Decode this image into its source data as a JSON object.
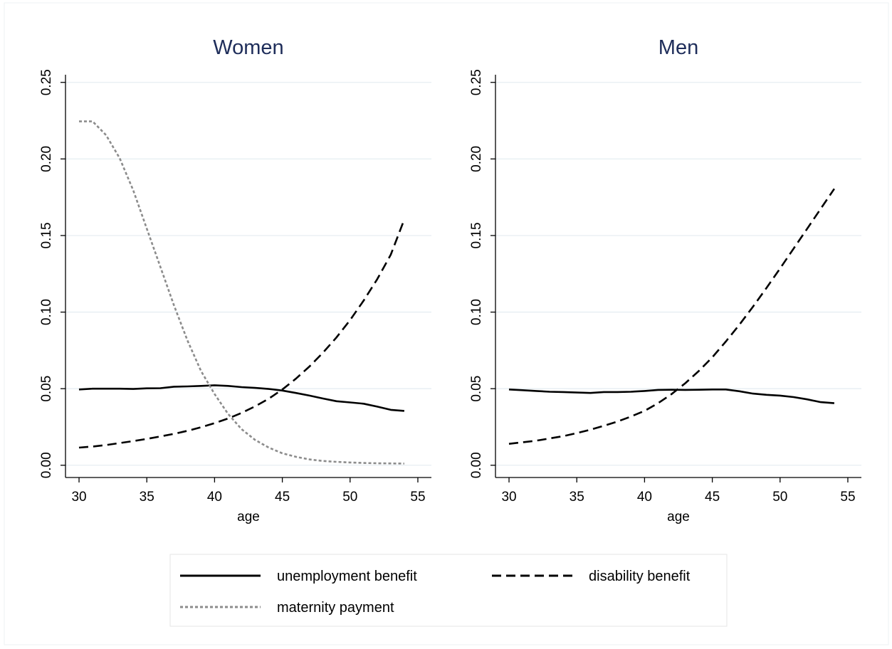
{
  "colors": {
    "background": "#ffffff",
    "grid": "#e6eef2",
    "axis": "#000000",
    "title": "#1e2d5a",
    "unemployment": "#000000",
    "disability": "#000000",
    "maternity": "#8c8c8c"
  },
  "legend": {
    "items": [
      {
        "key": "unemployment",
        "label": "unemployment benefit"
      },
      {
        "key": "disability",
        "label": "disability benefit"
      },
      {
        "key": "maternity",
        "label": "maternity payment"
      }
    ]
  },
  "chart_data": [
    {
      "type": "line",
      "title": "Women",
      "xlabel": "age",
      "ylabel": "",
      "xlim": [
        29,
        56
      ],
      "ylim": [
        -0.008,
        0.255
      ],
      "xticks": [
        "30",
        "35",
        "40",
        "45",
        "50",
        "55"
      ],
      "yticks": [
        "0.00",
        "0.05",
        "0.10",
        "0.15",
        "0.20",
        "0.25"
      ],
      "grid": true,
      "x": [
        30,
        31,
        32,
        33,
        34,
        35,
        36,
        37,
        38,
        39,
        40,
        41,
        42,
        43,
        44,
        45,
        46,
        47,
        48,
        49,
        50,
        51,
        52,
        53,
        54
      ],
      "series": [
        {
          "name": "unemployment benefit",
          "key": "unemployment",
          "values": [
            0.0495,
            0.05,
            0.05,
            0.05,
            0.0498,
            0.0502,
            0.0503,
            0.0513,
            0.0515,
            0.0518,
            0.0522,
            0.0518,
            0.051,
            0.0505,
            0.0498,
            0.0488,
            0.0472,
            0.0455,
            0.0436,
            0.0418,
            0.041,
            0.0402,
            0.0383,
            0.0362,
            0.0355
          ]
        },
        {
          "name": "disability benefit",
          "key": "disability",
          "values": [
            0.0115,
            0.0122,
            0.0132,
            0.0145,
            0.0158,
            0.0172,
            0.0188,
            0.0205,
            0.0225,
            0.0248,
            0.0275,
            0.0305,
            0.0342,
            0.0385,
            0.0435,
            0.0495,
            0.0565,
            0.0645,
            0.0735,
            0.0835,
            0.0948,
            0.1075,
            0.1215,
            0.1375,
            0.1605
          ]
        },
        {
          "name": "maternity payment",
          "key": "maternity",
          "values": [
            0.2245,
            0.2245,
            0.2155,
            0.2005,
            0.1795,
            0.1545,
            0.1295,
            0.1045,
            0.0815,
            0.0615,
            0.0465,
            0.0335,
            0.0235,
            0.0165,
            0.0115,
            0.0078,
            0.0055,
            0.0038,
            0.0028,
            0.0022,
            0.0018,
            0.0015,
            0.0013,
            0.0012,
            0.0011
          ]
        }
      ]
    },
    {
      "type": "line",
      "title": "Men",
      "xlabel": "age",
      "ylabel": "",
      "xlim": [
        29,
        56
      ],
      "ylim": [
        -0.008,
        0.255
      ],
      "xticks": [
        "30",
        "35",
        "40",
        "45",
        "50",
        "55"
      ],
      "yticks": [
        "0.00",
        "0.05",
        "0.10",
        "0.15",
        "0.20",
        "0.25"
      ],
      "grid": true,
      "x": [
        30,
        31,
        32,
        33,
        34,
        35,
        36,
        37,
        38,
        39,
        40,
        41,
        42,
        43,
        44,
        45,
        46,
        47,
        48,
        49,
        50,
        51,
        52,
        53,
        54
      ],
      "series": [
        {
          "name": "unemployment benefit",
          "key": "unemployment",
          "values": [
            0.0495,
            0.049,
            0.0485,
            0.048,
            0.0478,
            0.0475,
            0.0472,
            0.0478,
            0.0478,
            0.048,
            0.0485,
            0.0492,
            0.0493,
            0.0492,
            0.0493,
            0.0495,
            0.0495,
            0.0483,
            0.0468,
            0.046,
            0.0455,
            0.0445,
            0.043,
            0.0412,
            0.0405
          ]
        },
        {
          "name": "disability benefit",
          "key": "disability",
          "values": [
            0.014,
            0.015,
            0.016,
            0.0175,
            0.019,
            0.021,
            0.0232,
            0.0258,
            0.0285,
            0.0318,
            0.0355,
            0.0405,
            0.0465,
            0.0535,
            0.0615,
            0.0705,
            0.0808,
            0.0918,
            0.1035,
            0.1158,
            0.1285,
            0.1415,
            0.1545,
            0.1675,
            0.1805
          ]
        }
      ]
    }
  ]
}
